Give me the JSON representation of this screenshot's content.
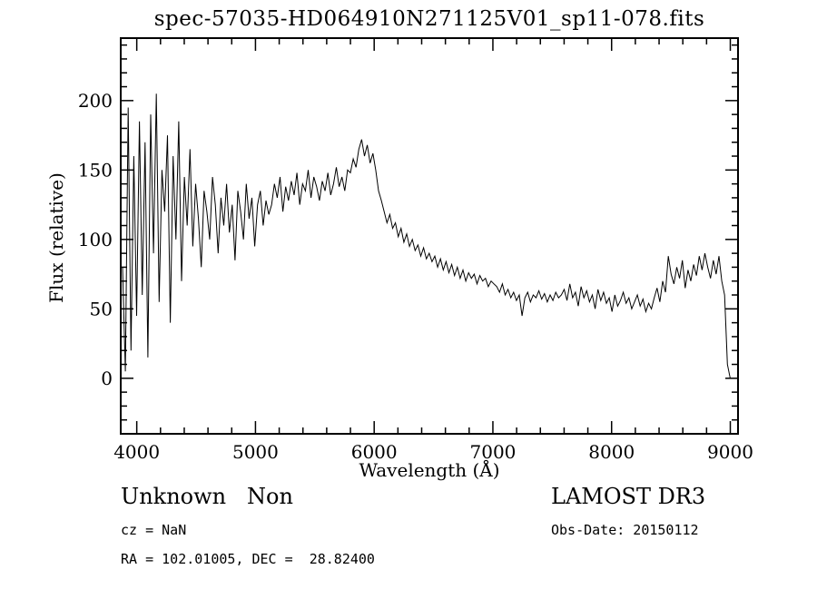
{
  "chart_data": {
    "type": "line",
    "title": "spec-57035-HD064910N271125V01_sp11-078.fits",
    "xlabel": "Wavelength (Å)",
    "ylabel": "Flux (relative)",
    "xlim": [
      3865,
      9065
    ],
    "ylim": [
      -40,
      245
    ],
    "x_ticks": [
      4000,
      5000,
      6000,
      7000,
      8000,
      9000
    ],
    "y_ticks": [
      0,
      50,
      100,
      150,
      200
    ],
    "x_minor_step": 200,
    "y_minor_step": 10,
    "grid": false,
    "legend": "none",
    "line_color": "#000000",
    "x_start": 3880,
    "x_step": 23.7,
    "flux": [
      80,
      5,
      195,
      20,
      160,
      45,
      185,
      60,
      170,
      15,
      190,
      90,
      205,
      55,
      150,
      120,
      175,
      40,
      160,
      100,
      185,
      70,
      145,
      110,
      165,
      95,
      140,
      115,
      80,
      135,
      120,
      100,
      145,
      125,
      90,
      130,
      110,
      140,
      105,
      125,
      85,
      135,
      120,
      100,
      140,
      115,
      130,
      95,
      125,
      135,
      110,
      128,
      118,
      125,
      140,
      130,
      145,
      120,
      138,
      128,
      142,
      132,
      148,
      125,
      140,
      135,
      150,
      130,
      145,
      138,
      128,
      142,
      135,
      148,
      132,
      140,
      152,
      138,
      145,
      135,
      150,
      148,
      158,
      152,
      165,
      172,
      160,
      168,
      155,
      162,
      150,
      135,
      128,
      120,
      112,
      118,
      108,
      112,
      102,
      108,
      98,
      104,
      95,
      100,
      92,
      96,
      88,
      94,
      86,
      90,
      84,
      88,
      80,
      86,
      78,
      84,
      76,
      82,
      74,
      80,
      72,
      78,
      70,
      76,
      72,
      75,
      68,
      74,
      70,
      72,
      66,
      70,
      68,
      66,
      62,
      68,
      60,
      64,
      58,
      62,
      56,
      60,
      45,
      58,
      62,
      55,
      60,
      58,
      63,
      57,
      61,
      55,
      60,
      56,
      62,
      58,
      60,
      64,
      56,
      68,
      58,
      62,
      52,
      66,
      58,
      63,
      55,
      60,
      50,
      64,
      56,
      62,
      54,
      58,
      48,
      60,
      52,
      56,
      62,
      54,
      58,
      50,
      55,
      60,
      52,
      57,
      48,
      54,
      50,
      58,
      65,
      55,
      70,
      62,
      88,
      75,
      68,
      80,
      72,
      85,
      65,
      78,
      70,
      82,
      74,
      88,
      78,
      90,
      80,
      72,
      85,
      75,
      88,
      70,
      60,
      10,
      0
    ]
  },
  "footer": {
    "class_label": "Unknown   Non",
    "survey": "LAMOST DR3",
    "cz": "cz = NaN",
    "obs_date": "Obs-Date: 20150112",
    "ra_dec": "RA = 102.01005, DEC =  28.82400"
  }
}
